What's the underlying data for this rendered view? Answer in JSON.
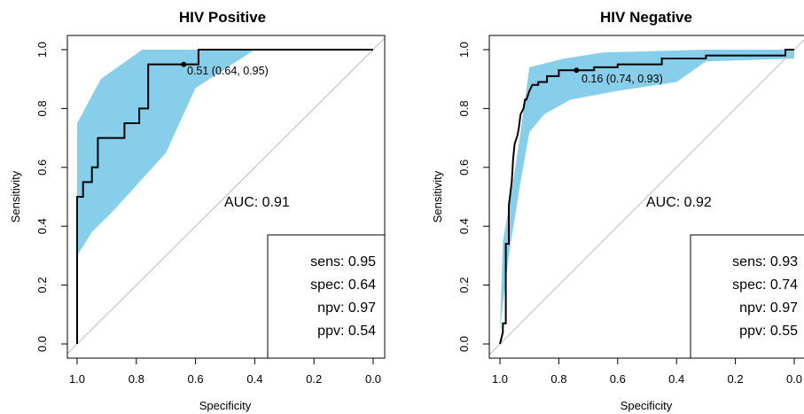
{
  "chart_data": [
    {
      "type": "line",
      "title": "HIV Positive",
      "xlabel": "Specificity",
      "ylabel": "Sensitivity",
      "x_reversed": true,
      "xlim": [
        1.0,
        0.0
      ],
      "ylim": [
        0.0,
        1.0
      ],
      "xticks": [
        "1.0",
        "0.8",
        "0.6",
        "0.4",
        "0.2",
        "0.0"
      ],
      "yticks": [
        "0.0",
        "0.2",
        "0.4",
        "0.6",
        "0.8",
        "1.0"
      ],
      "auc_label": "AUC: 0.91",
      "threshold_label": "0.51 (0.64, 0.95)",
      "threshold_point": {
        "specificity": 0.64,
        "sensitivity": 0.95
      },
      "roc_curve": {
        "specificity": [
          1.0,
          1.0,
          0.98,
          0.98,
          0.95,
          0.95,
          0.93,
          0.93,
          0.84,
          0.84,
          0.79,
          0.79,
          0.76,
          0.76,
          0.64,
          0.64,
          0.59,
          0.59,
          0.0
        ],
        "sensitivity": [
          0.0,
          0.5,
          0.5,
          0.55,
          0.55,
          0.6,
          0.6,
          0.7,
          0.7,
          0.75,
          0.75,
          0.8,
          0.8,
          0.95,
          0.95,
          0.95,
          0.95,
          1.0,
          1.0
        ]
      },
      "ci_band": {
        "upper": {
          "specificity": [
            1.0,
            1.0,
            0.92,
            0.78,
            0.4,
            0.0
          ],
          "sensitivity": [
            0.3,
            0.75,
            0.9,
            1.0,
            1.0,
            1.0
          ]
        },
        "lower": {
          "specificity": [
            1.0,
            0.95,
            0.88,
            0.7,
            0.6,
            0.4
          ],
          "sensitivity": [
            0.3,
            0.38,
            0.45,
            0.65,
            0.87,
            1.0
          ]
        }
      },
      "reference_line": true,
      "stats_box": [
        "sens: 0.95",
        "spec: 0.64",
        "npv: 0.97",
        "ppv: 0.54"
      ],
      "colors": {
        "ci_fill": "#87CEEB",
        "curve": "#000000",
        "diagonal": "#BEBEBE"
      }
    },
    {
      "type": "line",
      "title": "HIV Negative",
      "xlabel": "Specificity",
      "ylabel": "Sensitivity",
      "x_reversed": true,
      "xlim": [
        1.0,
        0.0
      ],
      "ylim": [
        0.0,
        1.0
      ],
      "xticks": [
        "1.0",
        "0.8",
        "0.6",
        "0.4",
        "0.2",
        "0.0"
      ],
      "yticks": [
        "0.0",
        "0.2",
        "0.4",
        "0.6",
        "0.8",
        "1.0"
      ],
      "auc_label": "AUC: 0.92",
      "threshold_label": "0.16 (0.74, 0.93)",
      "threshold_point": {
        "specificity": 0.74,
        "sensitivity": 0.93
      },
      "roc_curve": {
        "specificity": [
          1.0,
          0.99,
          0.99,
          0.98,
          0.98,
          0.97,
          0.97,
          0.96,
          0.955,
          0.95,
          0.94,
          0.935,
          0.93,
          0.92,
          0.915,
          0.91,
          0.9,
          0.89,
          0.87,
          0.87,
          0.84,
          0.84,
          0.8,
          0.8,
          0.74,
          0.74,
          0.68,
          0.68,
          0.6,
          0.6,
          0.45,
          0.45,
          0.3,
          0.3,
          0.03,
          0.03,
          0.0
        ],
        "sensitivity": [
          0.0,
          0.04,
          0.07,
          0.07,
          0.34,
          0.34,
          0.47,
          0.55,
          0.63,
          0.68,
          0.71,
          0.74,
          0.78,
          0.8,
          0.83,
          0.83,
          0.86,
          0.88,
          0.88,
          0.89,
          0.89,
          0.91,
          0.91,
          0.93,
          0.93,
          0.93,
          0.93,
          0.94,
          0.94,
          0.95,
          0.95,
          0.97,
          0.97,
          0.98,
          0.98,
          1.0,
          1.0
        ]
      },
      "ci_band": {
        "upper": {
          "specificity": [
            1.0,
            0.99,
            0.96,
            0.93,
            0.9,
            0.78,
            0.65,
            0.3,
            0.0
          ],
          "sensitivity": [
            0.05,
            0.35,
            0.52,
            0.72,
            0.94,
            0.97,
            0.99,
            1.0,
            1.0
          ]
        },
        "lower": {
          "specificity": [
            1.0,
            0.97,
            0.93,
            0.9,
            0.85,
            0.76,
            0.6,
            0.4,
            0.3,
            0.0
          ],
          "sensitivity": [
            0.05,
            0.3,
            0.55,
            0.72,
            0.78,
            0.83,
            0.86,
            0.89,
            0.96,
            0.97
          ]
        }
      },
      "reference_line": true,
      "stats_box": [
        "sens: 0.93",
        "spec: 0.74",
        "npv: 0.97",
        "ppv: 0.55"
      ],
      "colors": {
        "ci_fill": "#87CEEB",
        "curve": "#000000",
        "diagonal": "#BEBEBE"
      }
    }
  ]
}
